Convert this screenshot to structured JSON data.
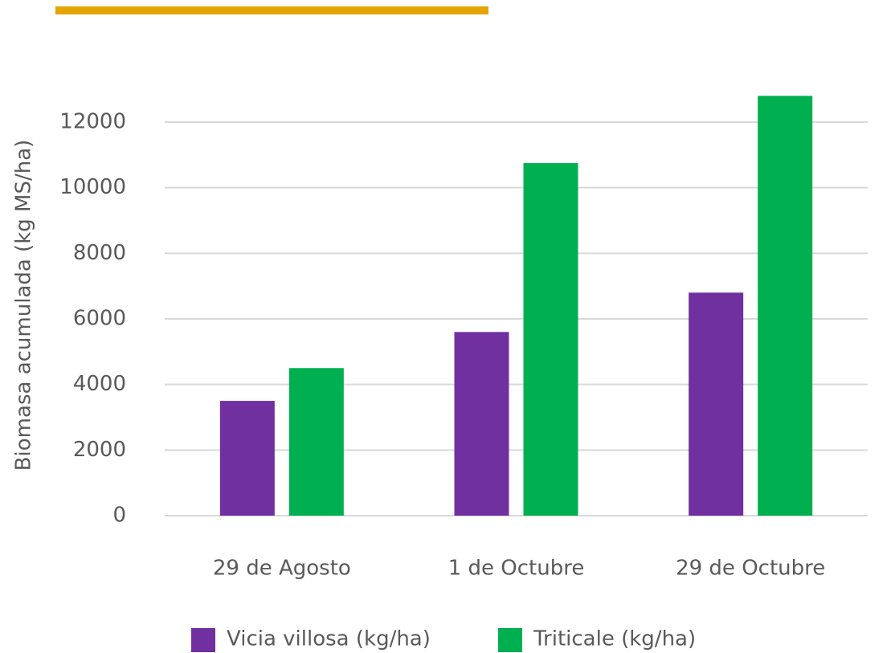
{
  "chart_data": {
    "type": "bar",
    "y_label": "Biomasa acumulada (kg MS/ha)",
    "categories": [
      "29 de Agosto",
      "1 de Octubre",
      "29 de Octubre"
    ],
    "series": [
      {
        "name": "Vicia villosa (kg/ha)",
        "color": "#7030a0",
        "values": [
          3500,
          5600,
          6800
        ]
      },
      {
        "name": "Triticale (kg/ha)",
        "color": "#00b050",
        "values": [
          4500,
          10750,
          12800
        ]
      }
    ],
    "ylim": [
      0,
      12000
    ],
    "yticks": [
      0,
      2000,
      4000,
      6000,
      8000,
      10000,
      12000
    ],
    "grid": true,
    "legend": "bottom"
  }
}
